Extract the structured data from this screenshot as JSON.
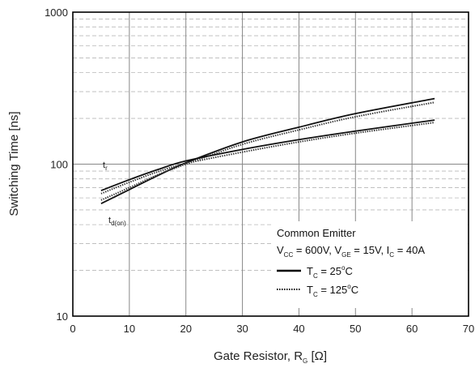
{
  "chart_data": {
    "type": "line",
    "title": "",
    "xlabel": {
      "main": "Gate Resistor, R",
      "sub": "G",
      "unit": " [Ω]"
    },
    "ylabel": "Switching Time [ns]",
    "xlim": [
      0,
      70
    ],
    "ylim": [
      10,
      1000
    ],
    "yscale": "log",
    "grid": true,
    "x_ticks": [
      0,
      10,
      20,
      30,
      40,
      50,
      60,
      70
    ],
    "y_ticks": [
      10,
      100,
      1000
    ],
    "legend": {
      "placement": "bottom-right",
      "title": "Common Emitter",
      "conditions": [
        {
          "main": "V",
          "sub": "CC",
          "text": " = 600V, "
        },
        {
          "main": "V",
          "sub": "GE",
          "text": " = 15V, "
        },
        {
          "main": "I",
          "sub": "C",
          "text": " = 40A"
        }
      ],
      "entries": [
        {
          "main": "T",
          "sub": "C",
          "text": " = 25",
          "sup": "o",
          "unit": "C",
          "style": "solid"
        },
        {
          "main": "T",
          "sub": "C",
          "text": " = 125",
          "sup": "o",
          "unit": "C",
          "style": "dotted"
        }
      ]
    },
    "curve_labels": [
      {
        "main": "t",
        "sub": "r"
      },
      {
        "main": "t",
        "sub": "d(on)"
      }
    ],
    "series": [
      {
        "curve": "tr",
        "condition": "25C",
        "x": [
          5,
          10,
          15,
          20,
          30,
          40,
          50,
          64
        ],
        "y": [
          55,
          68,
          84,
          102,
          140,
          175,
          215,
          270
        ]
      },
      {
        "curve": "tr",
        "condition": "125C",
        "x": [
          5,
          10,
          15,
          20,
          30,
          40,
          50,
          64
        ],
        "y": [
          58,
          70,
          85,
          100,
          135,
          168,
          205,
          255
        ]
      },
      {
        "curve": "td(on)",
        "condition": "25C",
        "x": [
          5,
          10,
          15,
          20,
          30,
          40,
          50,
          64
        ],
        "y": [
          67,
          79,
          92,
          105,
          125,
          145,
          165,
          195
        ]
      },
      {
        "curve": "td(on)",
        "condition": "125C",
        "x": [
          5,
          10,
          15,
          20,
          30,
          40,
          50,
          64
        ],
        "y": [
          64,
          76,
          89,
          101,
          120,
          140,
          160,
          188
        ]
      }
    ]
  }
}
